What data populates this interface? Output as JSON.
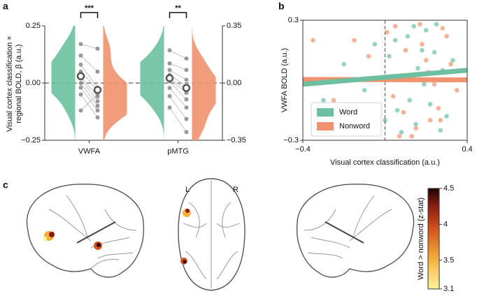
{
  "chart_data": [
    {
      "type": "violin",
      "panel": "a",
      "ylabel": [
        "Visual cortex classification ×",
        "regional BOLD, β (a.u.)"
      ],
      "categories": [
        "VWFA",
        "pMTG"
      ],
      "axes": [
        "y",
        "y2"
      ],
      "ylim": [
        -0.25,
        0.25
      ],
      "yticks": [
        {
          "value": -0.25,
          "label": "−0.25"
        },
        {
          "value": 0,
          "label": "0.00"
        },
        {
          "value": 0.25,
          "label": "0.25"
        }
      ],
      "y2lim": [
        -0.35,
        0.35
      ],
      "y2ticks": [
        {
          "value": -0.35,
          "label": "−0.35"
        },
        {
          "value": 0,
          "label": "0.00"
        },
        {
          "value": 0.35,
          "label": "0.35"
        }
      ],
      "colors": [
        "#6cc0a0",
        "#f0926e"
      ],
      "word": [
        [
          0.17,
          0.12,
          0.08,
          0.05,
          0.03,
          0.02,
          0.0,
          -0.02,
          -0.05,
          -0.12
        ],
        [
          0.2,
          0.12,
          0.08,
          0.05,
          0.03,
          0.02,
          0.01,
          -0.03,
          -0.08,
          -0.15
        ]
      ],
      "nonword": [
        [
          0.15,
          0.05,
          -0.02,
          -0.03,
          -0.06,
          -0.08,
          -0.1,
          -0.12,
          -0.15,
          -0.05
        ],
        [
          0.15,
          0.08,
          0.02,
          -0.02,
          -0.04,
          -0.06,
          -0.1,
          -0.15,
          -0.22,
          -0.3
        ]
      ],
      "word_means": [
        0.03,
        0.03
      ],
      "nonword_means": [
        -0.03,
        -0.03
      ],
      "annotations": [
        "***",
        "**"
      ]
    },
    {
      "type": "scatter",
      "panel": "b",
      "xlabel": "Visual cortex classification (a.u.)",
      "ylabel": "VWFA BOLD (a.u.)",
      "xlim": [
        -0.4,
        0.4
      ],
      "xticks": [
        {
          "value": -0.4,
          "label": "−0.4"
        },
        0.4
      ],
      "ylim": [
        -0.3,
        0.3
      ],
      "yticks": [
        {
          "value": -0.3,
          "label": "−0.3"
        },
        0.3
      ],
      "vline": 0,
      "legend": "lower left",
      "series": [
        {
          "name": "Word",
          "color": "#6cc0a0",
          "x": [
            0.05,
            0.12,
            0.2,
            0.28,
            0.15,
            0.02,
            -0.1,
            0.3,
            0.18,
            0.08,
            0.25,
            -0.2,
            0.1,
            0.22,
            0.33,
            0.0,
            0.14,
            0.27,
            -0.05,
            0.19,
            0.11,
            0.24,
            0.06,
            -0.3,
            0.16
          ],
          "values": [
            0.2,
            -0.1,
            0.25,
            0.05,
            -0.22,
            0.12,
            -0.05,
            -0.18,
            0.15,
            -0.26,
            0.28,
            0.08,
            0.02,
            -0.12,
            0.1,
            -0.2,
            0.27,
            -0.25,
            0.18,
            -0.02,
            0.22,
            0.14,
            -0.15,
            -0.1,
            0.06
          ],
          "fit": {
            "x": [
              -0.4,
              0.4
            ],
            "y": [
              -0.02,
              0.05
            ]
          }
        },
        {
          "name": "Nonword",
          "color": "#f0926e",
          "x": [
            0.1,
            0.22,
            0.3,
            0.04,
            0.17,
            0.26,
            -0.15,
            0.12,
            0.35,
            0.2,
            0.07,
            -0.25,
            0.28,
            0.15,
            0.01,
            0.24,
            -0.08,
            0.18,
            0.32,
            0.09,
            0.21,
            -0.35,
            0.13,
            0.27,
            0.05
          ],
          "values": [
            0.15,
            -0.2,
            0.22,
            -0.08,
            0.28,
            -0.14,
            0.2,
            0.0,
            -0.05,
            0.1,
            -0.28,
            -0.1,
            0.26,
            -0.24,
            0.24,
            -0.02,
            0.12,
            0.18,
            0.08,
            -0.16,
            0.04,
            0.2,
            -0.28,
            -0.2,
            0.27
          ],
          "fit": {
            "x": [
              -0.4,
              0.4
            ],
            "y": [
              0.004,
              0.002
            ]
          }
        }
      ]
    },
    {
      "type": "colorbar",
      "panel": "c",
      "label": "Word > nonword (z-stat)",
      "lim": [
        3.1,
        4.5
      ],
      "ticks": [
        3.1,
        3.5,
        4,
        4.5
      ],
      "hemispheres": [
        "L",
        "R"
      ]
    }
  ]
}
